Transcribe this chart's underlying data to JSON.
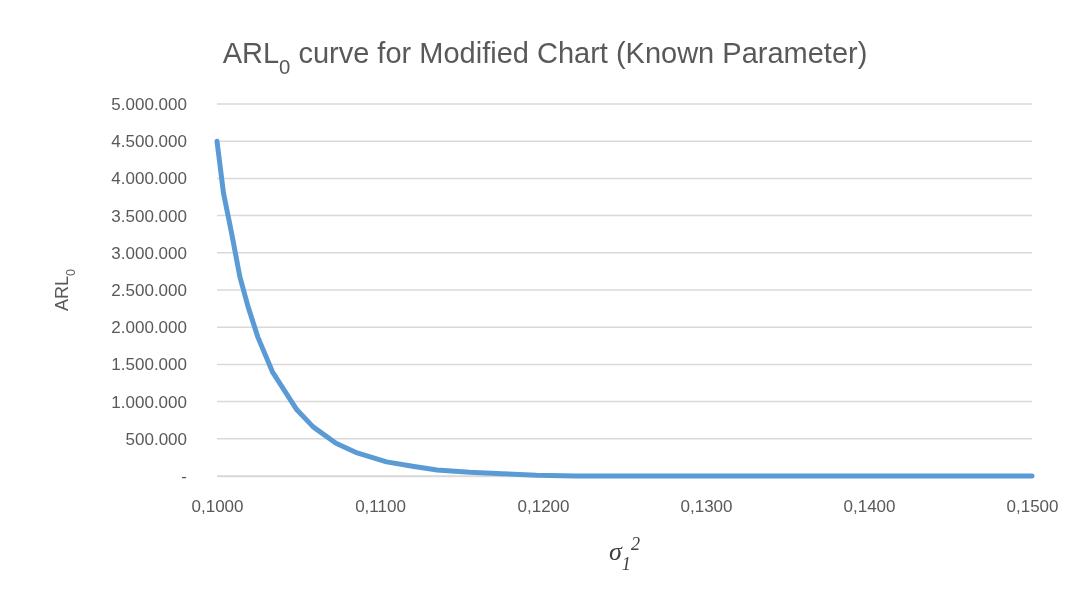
{
  "chart_data": {
    "type": "line",
    "title": "ARL$_{0}$ curve for Modified Chart (Known Parameter)",
    "xlabel": "σ$_{1}$$^{2}$",
    "ylabel": "ARL$_{0}$",
    "x": [
      0.1,
      0.1004,
      0.1009,
      0.1014,
      0.1019,
      0.1025,
      0.1034,
      0.1049,
      0.1059,
      0.1073,
      0.1086,
      0.1104,
      0.112,
      0.1135,
      0.1155,
      0.1175,
      0.1196,
      0.122,
      0.125,
      0.13,
      0.14,
      0.15
    ],
    "series": [
      {
        "color": "#5b9bd5",
        "values": [
          4500000,
          3800000,
          3260000,
          2680000,
          2280000,
          1870000,
          1400000,
          890000,
          660000,
          440000,
          310000,
          190000,
          130000,
          80000,
          50000,
          30000,
          10000,
          0,
          0,
          0,
          0,
          0
        ]
      }
    ],
    "xlim": [
      0.1,
      0.15
    ],
    "xticks": [
      {
        "value": 0.1,
        "label": "0,1000"
      },
      {
        "value": 0.11,
        "label": "0,1100"
      },
      {
        "value": 0.12,
        "label": "0,1200"
      },
      {
        "value": 0.13,
        "label": "0,1300"
      },
      {
        "value": 0.14,
        "label": "0,1400"
      },
      {
        "value": 0.15,
        "label": "0,1500"
      }
    ],
    "ylim": [
      0,
      5000000
    ],
    "yticks": [
      {
        "value": 0,
        "label": "-"
      },
      {
        "value": 500000,
        "label": "500.000"
      },
      {
        "value": 1000000,
        "label": "1.000.000"
      },
      {
        "value": 1500000,
        "label": "1.500.000"
      },
      {
        "value": 2000000,
        "label": "2.000.000"
      },
      {
        "value": 2500000,
        "label": "2.500.000"
      },
      {
        "value": 3000000,
        "label": "3.000.000"
      },
      {
        "value": 3500000,
        "label": "3.500.000"
      },
      {
        "value": 4000000,
        "label": "4.000.000"
      },
      {
        "value": 4500000,
        "label": "4.500.000"
      },
      {
        "value": 5000000,
        "label": "5.000.000"
      }
    ],
    "grid": "y",
    "marker": "none",
    "line_style": "solid"
  }
}
